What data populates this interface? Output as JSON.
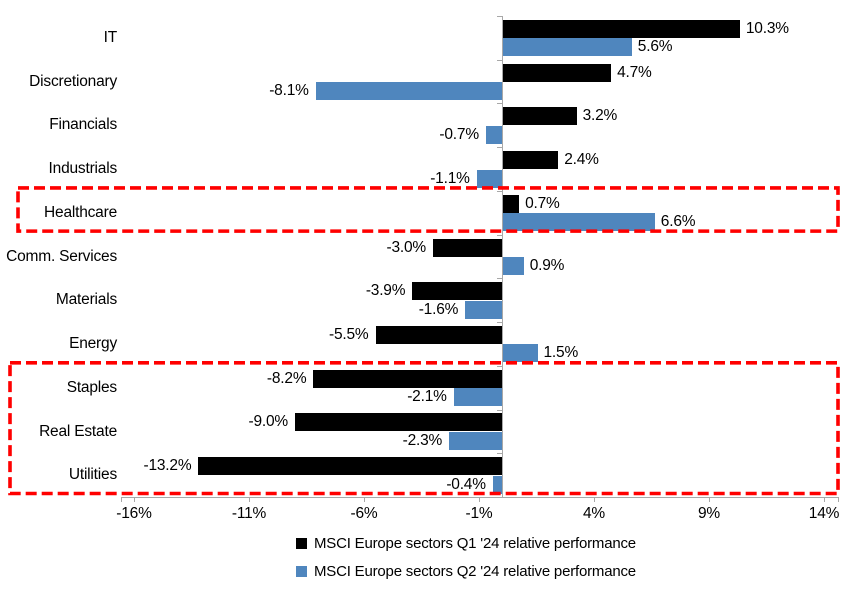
{
  "chart_data": {
    "type": "bar",
    "orientation": "horizontal",
    "title": "",
    "categories": [
      "IT",
      "Discretionary",
      "Financials",
      "Industrials",
      "Healthcare",
      "Comm. Services",
      "Materials",
      "Energy",
      "Staples",
      "Real Estate",
      "Utilities"
    ],
    "series": [
      {
        "name": "MSCI Europe sectors Q1 '24 relative performance",
        "color": "#000000",
        "values": [
          10.3,
          4.7,
          3.2,
          2.4,
          0.7,
          -3.0,
          -3.9,
          -5.5,
          -8.2,
          -9.0,
          -13.2
        ],
        "labels": [
          "10.3%",
          "4.7%",
          "3.2%",
          "2.4%",
          "0.7%",
          "-3.0%",
          "-3.9%",
          "-5.5%",
          "-8.2%",
          "-9.0%",
          "-13.2%"
        ]
      },
      {
        "name": "MSCI Europe sectors Q2 '24 relative performance",
        "color": "#4F86BE",
        "values": [
          5.6,
          -8.1,
          -0.7,
          -1.1,
          6.6,
          0.9,
          -1.6,
          1.5,
          -2.1,
          -2.3,
          -0.4
        ],
        "labels": [
          "5.6%",
          "-8.1%",
          "-0.7%",
          "-1.1%",
          "6.6%",
          "0.9%",
          "-1.6%",
          "1.5%",
          "-2.1%",
          "-2.3%",
          "-0.4%"
        ]
      }
    ],
    "x_tick_labels": [
      "-16%",
      "-11%",
      "-6%",
      "-1%",
      "4%",
      "9%",
      "14%"
    ],
    "x_tick_values": [
      -16,
      -11,
      -6,
      -1,
      4,
      9,
      14
    ],
    "xlim": [
      -16.5,
      14.6
    ],
    "grid": false,
    "legend_position": "bottom",
    "highlights": [
      {
        "categories": [
          "Healthcare"
        ],
        "style": "red-dashed-box",
        "color": "#FF0000"
      },
      {
        "categories": [
          "Staples",
          "Real Estate",
          "Utilities"
        ],
        "style": "red-dashed-box",
        "color": "#FF0000"
      }
    ],
    "colors": {
      "axis": "#A8A8A8",
      "highlight": "#FF0000",
      "text": "#000000",
      "background": "#FFFFFF"
    }
  }
}
